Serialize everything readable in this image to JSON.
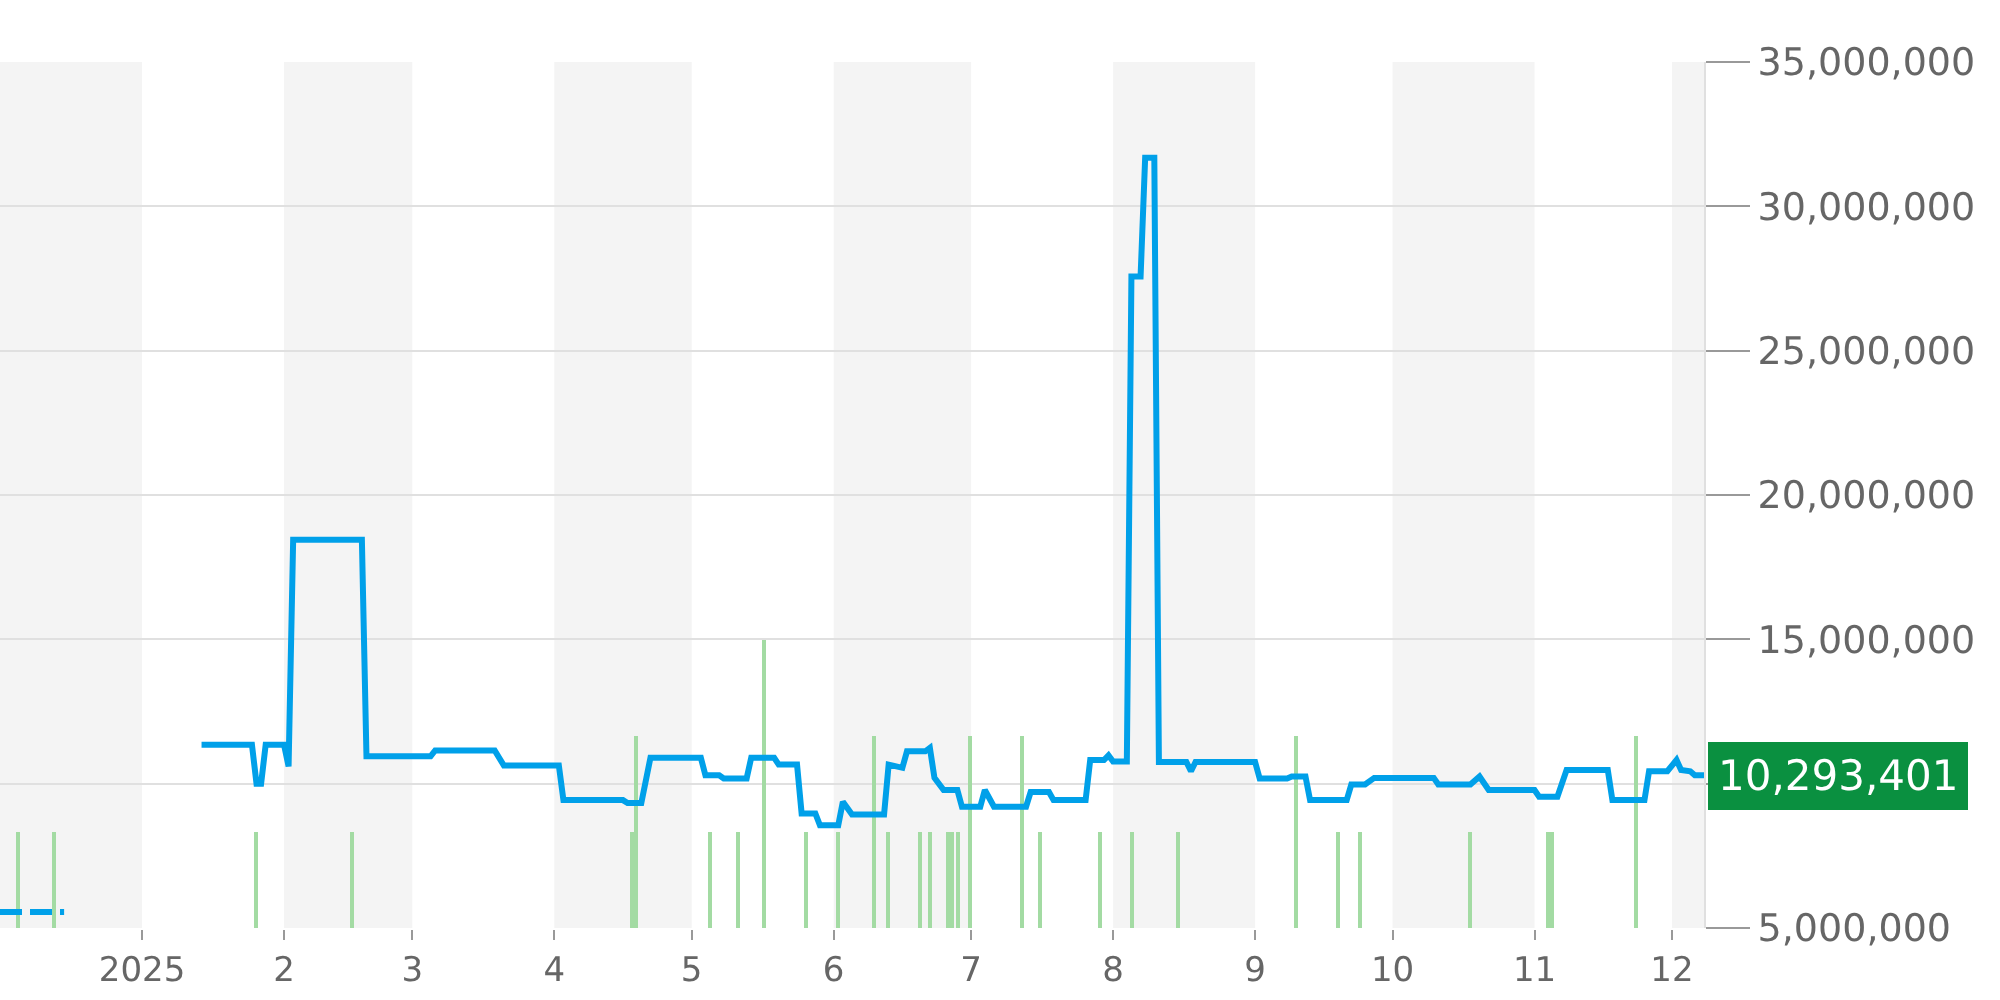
{
  "chart_data": {
    "type": "line",
    "xlim": [
      "2024-12-01",
      "2025-12-08"
    ],
    "ylim": [
      5000000,
      35000000
    ],
    "xticks": [
      {
        "value": "2025-01-01",
        "label": "2025"
      },
      {
        "value": "2025-02-01",
        "label": "2"
      },
      {
        "value": "2025-03-01",
        "label": "3"
      },
      {
        "value": "2025-04-01",
        "label": "4"
      },
      {
        "value": "2025-05-01",
        "label": "5"
      },
      {
        "value": "2025-06-01",
        "label": "6"
      },
      {
        "value": "2025-07-01",
        "label": "7"
      },
      {
        "value": "2025-08-01",
        "label": "8"
      },
      {
        "value": "2025-09-01",
        "label": "9"
      },
      {
        "value": "2025-10-01",
        "label": "10"
      },
      {
        "value": "2025-11-01",
        "label": "11"
      },
      {
        "value": "2025-12-01",
        "label": "12"
      }
    ],
    "yticks": [
      {
        "value": 5000000,
        "label": "5,000,000"
      },
      {
        "value": 10000000,
        "label": null
      },
      {
        "value": 15000000,
        "label": "15,000,000"
      },
      {
        "value": 20000000,
        "label": "20,000,000"
      },
      {
        "value": 25000000,
        "label": "25,000,000"
      },
      {
        "value": 30000000,
        "label": "30,000,000"
      },
      {
        "value": 35000000,
        "label": "35,000,000"
      }
    ],
    "grid": "y",
    "legend": false,
    "marker": "none",
    "bands": [
      {
        "axis": "x",
        "from": "2024-12-01",
        "to": "2025-01-01",
        "color": "#f4f4f4"
      },
      {
        "axis": "x",
        "from": "2025-02-01",
        "to": "2025-03-01",
        "color": "#f4f4f4"
      },
      {
        "axis": "x",
        "from": "2025-04-01",
        "to": "2025-05-01",
        "color": "#f4f4f4"
      },
      {
        "axis": "x",
        "from": "2025-06-01",
        "to": "2025-07-01",
        "color": "#f4f4f4"
      },
      {
        "axis": "x",
        "from": "2025-08-01",
        "to": "2025-09-01",
        "color": "#f4f4f4"
      },
      {
        "axis": "x",
        "from": "2025-10-01",
        "to": "2025-11-01",
        "color": "#f4f4f4"
      },
      {
        "axis": "x",
        "from": "2025-12-01",
        "to": "2025-12-08",
        "color": "#f4f4f4"
      }
    ],
    "annotations": [
      "10,293,401"
    ],
    "series": [
      {
        "type": "bar",
        "color": "#a3dba3",
        "x": [
          "2024-12-05",
          "2024-12-13",
          "2025-01-26",
          "2025-02-16",
          "2025-04-18",
          "2025-04-19",
          "2025-05-05",
          "2025-05-11",
          "2025-05-17",
          "2025-05-26",
          "2025-06-02",
          "2025-06-10",
          "2025-06-13",
          "2025-06-20",
          "2025-06-22",
          "2025-06-26",
          "2025-06-27",
          "2025-06-28",
          "2025-07-01",
          "2025-07-12",
          "2025-07-16",
          "2025-07-29",
          "2025-08-05",
          "2025-08-15",
          "2025-09-10",
          "2025-09-19",
          "2025-09-24",
          "2025-10-18",
          "2025-11-04",
          "2025-11-05",
          "2025-11-23"
        ],
        "values": [
          8300000,
          8300000,
          8300000,
          8300000,
          8300000,
          11650000,
          8300000,
          8300000,
          15000000,
          8300000,
          8300000,
          11650000,
          8300000,
          8300000,
          8300000,
          8300000,
          8300000,
          8300000,
          11650000,
          11650000,
          8300000,
          8300000,
          8300000,
          8300000,
          11650000,
          8300000,
          8300000,
          8300000,
          8300000,
          8300000,
          11650000
        ]
      },
      {
        "color": "#00a0e9",
        "line_style": "dashed",
        "x": [
          "2024-12-01",
          "2024-12-15"
        ],
        "values": [
          5550000,
          5550000
        ]
      },
      {
        "color": "#00a0e9",
        "line_style": "solid",
        "x": [
          "2025-01-14",
          "2025-01-25",
          "2025-01-26",
          "2025-01-27",
          "2025-01-28",
          "2025-02-01",
          "2025-02-02",
          "2025-02-03",
          "2025-02-18",
          "2025-02-19",
          "2025-03-05",
          "2025-03-06",
          "2025-03-19",
          "2025-03-21",
          "2025-04-02",
          "2025-04-03",
          "2025-04-16",
          "2025-04-17",
          "2025-04-20",
          "2025-04-22",
          "2025-05-03",
          "2025-05-04",
          "2025-05-07",
          "2025-05-08",
          "2025-05-13",
          "2025-05-14",
          "2025-05-19",
          "2025-05-20",
          "2025-05-24",
          "2025-05-25",
          "2025-05-28",
          "2025-05-29",
          "2025-06-02",
          "2025-06-03",
          "2025-06-05",
          "2025-06-12",
          "2025-06-13",
          "2025-06-16",
          "2025-06-17",
          "2025-06-21",
          "2025-06-22",
          "2025-06-23",
          "2025-06-25",
          "2025-06-28",
          "2025-06-29",
          "2025-07-03",
          "2025-07-04",
          "2025-07-06",
          "2025-07-13",
          "2025-07-14",
          "2025-07-18",
          "2025-07-19",
          "2025-07-26",
          "2025-07-27",
          "2025-07-30",
          "2025-07-31",
          "2025-08-01",
          "2025-08-04",
          "2025-08-05",
          "2025-08-07",
          "2025-08-08",
          "2025-08-10",
          "2025-08-11",
          "2025-08-17",
          "2025-08-18",
          "2025-08-19",
          "2025-09-01",
          "2025-09-02",
          "2025-09-08",
          "2025-09-09",
          "2025-09-12",
          "2025-09-13",
          "2025-09-21",
          "2025-09-22",
          "2025-09-25",
          "2025-09-27",
          "2025-10-10",
          "2025-10-11",
          "2025-10-18",
          "2025-10-20",
          "2025-10-22",
          "2025-11-01",
          "2025-11-02",
          "2025-11-06",
          "2025-11-08",
          "2025-11-17",
          "2025-11-18",
          "2025-11-25",
          "2025-11-26",
          "2025-11-30",
          "2025-12-02",
          "2025-12-03",
          "2025-12-05",
          "2025-12-06",
          "2025-12-08"
        ],
        "values": [
          11350000,
          11350000,
          10000000,
          10000000,
          11350000,
          11350000,
          10600000,
          18450000,
          18450000,
          10950000,
          10950000,
          11150000,
          11150000,
          10630000,
          10630000,
          9430000,
          9430000,
          9330000,
          9330000,
          10900000,
          10900000,
          10290000,
          10290000,
          10180000,
          10180000,
          10900000,
          10900000,
          10660000,
          10660000,
          8970000,
          8970000,
          8560000,
          8560000,
          9370000,
          8930000,
          8930000,
          10660000,
          10550000,
          11120000,
          11120000,
          11240000,
          10200000,
          9780000,
          9780000,
          9200000,
          9200000,
          9780000,
          9200000,
          9200000,
          9710000,
          9710000,
          9430000,
          9430000,
          10820000,
          10820000,
          10980000,
          10770000,
          10770000,
          27570000,
          27570000,
          31680000,
          31680000,
          10750000,
          10750000,
          10430000,
          10750000,
          10750000,
          10180000,
          10180000,
          10250000,
          10250000,
          9430000,
          9430000,
          9970000,
          9970000,
          10200000,
          10200000,
          9970000,
          9970000,
          10250000,
          9780000,
          9780000,
          9550000,
          9550000,
          10470000,
          10470000,
          9430000,
          9430000,
          10430000,
          10430000,
          10820000,
          10470000,
          10430000,
          10290000,
          10290000
        ]
      }
    ]
  }
}
